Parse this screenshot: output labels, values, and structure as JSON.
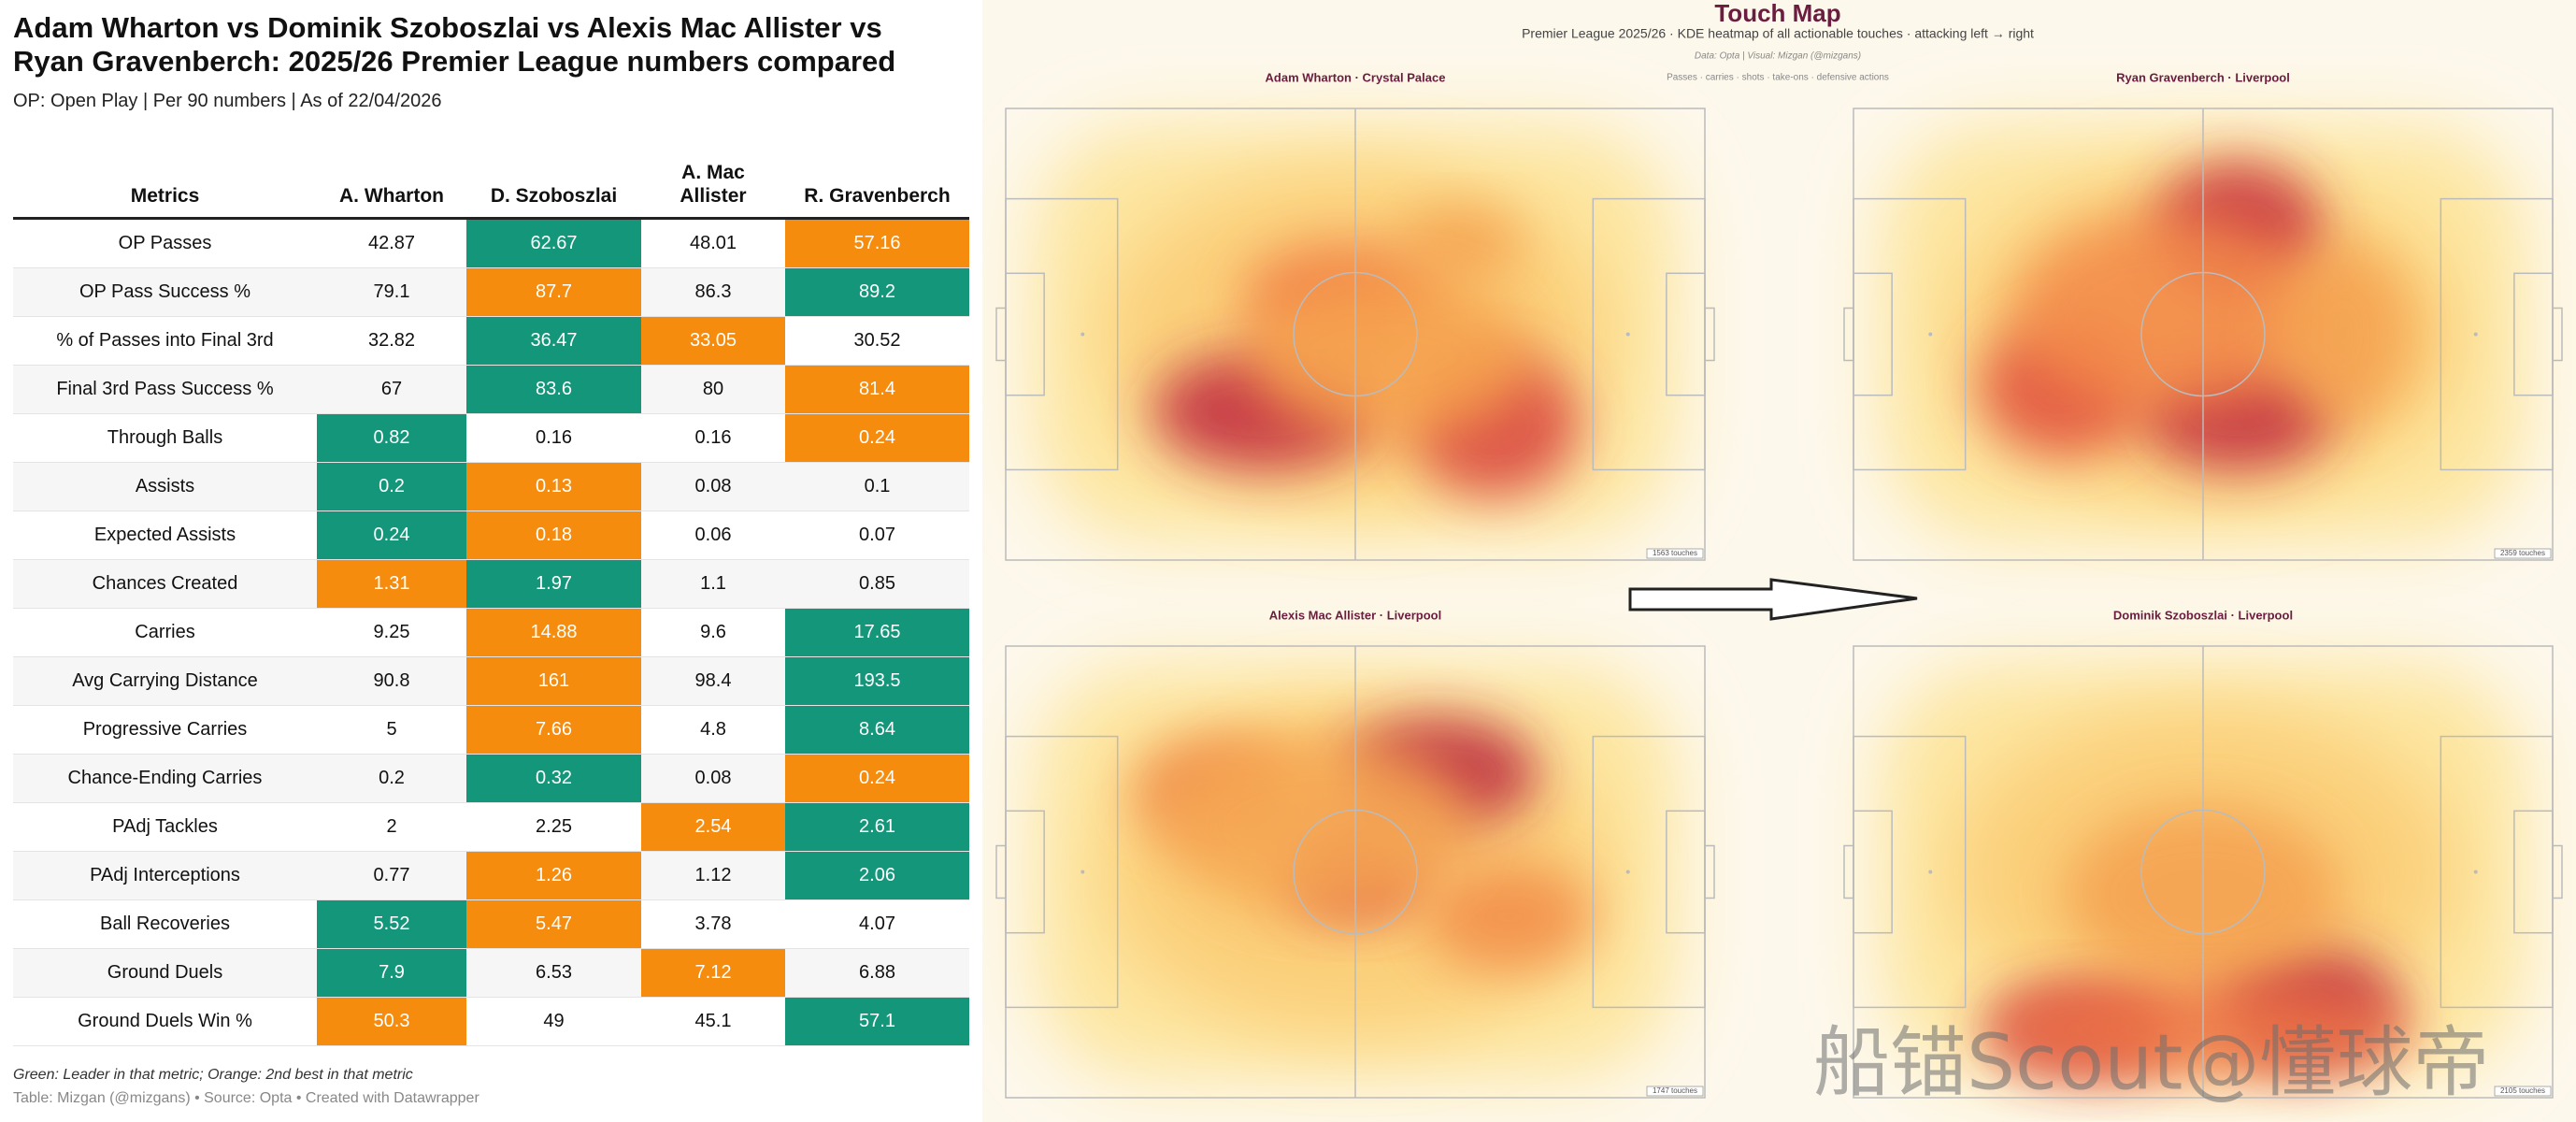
{
  "table": {
    "title": "Adam Wharton vs Dominik Szoboszlai vs Alexis Mac Allister vs Ryan Gravenberch: 2025/26 Premier League numbers compared",
    "subtitle": "OP: Open Play | Per 90 numbers | As of 22/04/2026",
    "columns": [
      "Metrics",
      "A. Wharton",
      "D. Szoboszlai",
      "A. Mac Allister",
      "R. Gravenberch"
    ],
    "colors": {
      "leader": "#14967a",
      "second": "#f68c0e"
    },
    "rows": [
      {
        "metric": "OP Passes",
        "cells": [
          42.87,
          62.67,
          48.01,
          57.16
        ],
        "leader": 1,
        "second": 3
      },
      {
        "metric": "OP Pass Success %",
        "cells": [
          79.1,
          87.7,
          86.3,
          89.2
        ],
        "leader": 3,
        "second": 1
      },
      {
        "metric": "% of Passes into Final 3rd",
        "cells": [
          32.82,
          36.47,
          33.05,
          30.52
        ],
        "leader": 1,
        "second": 2
      },
      {
        "metric": "Final 3rd Pass Success %",
        "cells": [
          67,
          83.6,
          80,
          81.4
        ],
        "leader": 1,
        "second": 3
      },
      {
        "metric": "Through Balls",
        "cells": [
          0.82,
          0.16,
          0.16,
          0.24
        ],
        "leader": 0,
        "second": 3
      },
      {
        "metric": "Assists",
        "cells": [
          0.2,
          0.13,
          0.08,
          0.1
        ],
        "leader": 0,
        "second": 1
      },
      {
        "metric": "Expected Assists",
        "cells": [
          0.24,
          0.18,
          0.06,
          0.07
        ],
        "leader": 0,
        "second": 1
      },
      {
        "metric": "Chances Created",
        "cells": [
          1.31,
          1.97,
          1.1,
          0.85
        ],
        "leader": 1,
        "second": 0
      },
      {
        "metric": "Carries",
        "cells": [
          9.25,
          14.88,
          9.6,
          17.65
        ],
        "leader": 3,
        "second": 1
      },
      {
        "metric": "Avg Carrying Distance",
        "cells": [
          90.8,
          161,
          98.4,
          193.5
        ],
        "leader": 3,
        "second": 1
      },
      {
        "metric": "Progressive Carries",
        "cells": [
          5,
          7.66,
          4.8,
          8.64
        ],
        "leader": 3,
        "second": 1
      },
      {
        "metric": "Chance-Ending Carries",
        "cells": [
          0.2,
          0.32,
          0.08,
          0.24
        ],
        "leader": 1,
        "second": 3
      },
      {
        "metric": "PAdj Tackles",
        "cells": [
          2,
          2.25,
          2.54,
          2.61
        ],
        "leader": 3,
        "second": 2
      },
      {
        "metric": "PAdj Interceptions",
        "cells": [
          0.77,
          1.26,
          1.12,
          2.06
        ],
        "leader": 3,
        "second": 1
      },
      {
        "metric": "Ball Recoveries",
        "cells": [
          5.52,
          5.47,
          3.78,
          4.07
        ],
        "leader": 0,
        "second": 1
      },
      {
        "metric": "Ground Duels",
        "cells": [
          7.9,
          6.53,
          7.12,
          6.88
        ],
        "leader": 0,
        "second": 2
      },
      {
        "metric": "Ground Duels Win %",
        "cells": [
          50.3,
          49,
          45.1,
          57.1
        ],
        "leader": 3,
        "second": 0
      }
    ],
    "notes": [
      "Green: Leader in that metric; Orange: 2nd best in that metric",
      "Table: Mizgan (@mizgans) • Source: Opta • Created with Datawrapper"
    ]
  },
  "touch_map": {
    "title": "Touch Map",
    "subtitle": "Premier League 2025/26  ·  KDE heatmap of all actionable touches  ·  attacking left → right",
    "credit": "Data: Opta | Visual: Mizgan (@mizgans)",
    "caption": "Passes · carries · shots · take-ons · defensive actions",
    "panels": [
      {
        "label": "Adam Wharton  ·  Crystal Palace",
        "touches": "1563 touches"
      },
      {
        "label": "Ryan Gravenberch  ·  Liverpool",
        "touches": "2359 touches"
      },
      {
        "label": "Alexis Mac Allister  ·  Liverpool",
        "touches": "1747 touches"
      },
      {
        "label": "Dominik Szoboszlai  ·  Liverpool",
        "touches": "2105 touches"
      }
    ]
  },
  "watermark": "船锚Scout@懂球帝"
}
